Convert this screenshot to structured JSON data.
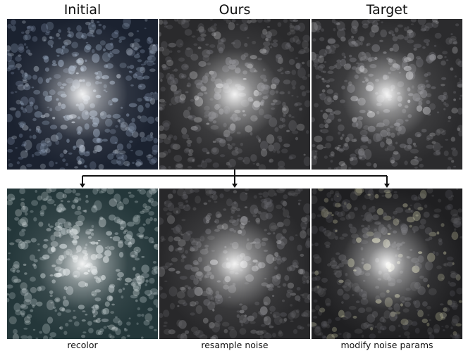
{
  "top_row": {
    "headers": [
      "Initial",
      "Ours",
      "Target"
    ]
  },
  "bottom_row": {
    "captions": [
      "recolor",
      "resample noise",
      "modify noise params"
    ]
  },
  "panels": [
    {
      "name": "initial-texture-image",
      "base": "#1b2230",
      "blob": "#8fa0b8",
      "glow": "#ffffff",
      "speck": "#c9d3e0"
    },
    {
      "name": "ours-texture-image",
      "base": "#2a2a2c",
      "blob": "#6e6e74",
      "glow": "#ffffff",
      "speck": "#b5b5b8"
    },
    {
      "name": "target-texture-image",
      "base": "#2b2b2d",
      "blob": "#7a7a80",
      "glow": "#ffffff",
      "speck": "#c4c4c8"
    },
    {
      "name": "recolor-texture-image",
      "base": "#24373a",
      "blob": "#c5cfd2",
      "glow": "#ffffff",
      "speck": "#dde5e6"
    },
    {
      "name": "resample-noise-texture-image",
      "base": "#28282a",
      "blob": "#6b6b70",
      "glow": "#ffffff",
      "speck": "#b0b0b4"
    },
    {
      "name": "modify-noise-params-texture-image",
      "base": "#1f1f21",
      "blob": "#5d5d62",
      "glow": "#ffffff",
      "speck": "#d8d6b0"
    }
  ]
}
